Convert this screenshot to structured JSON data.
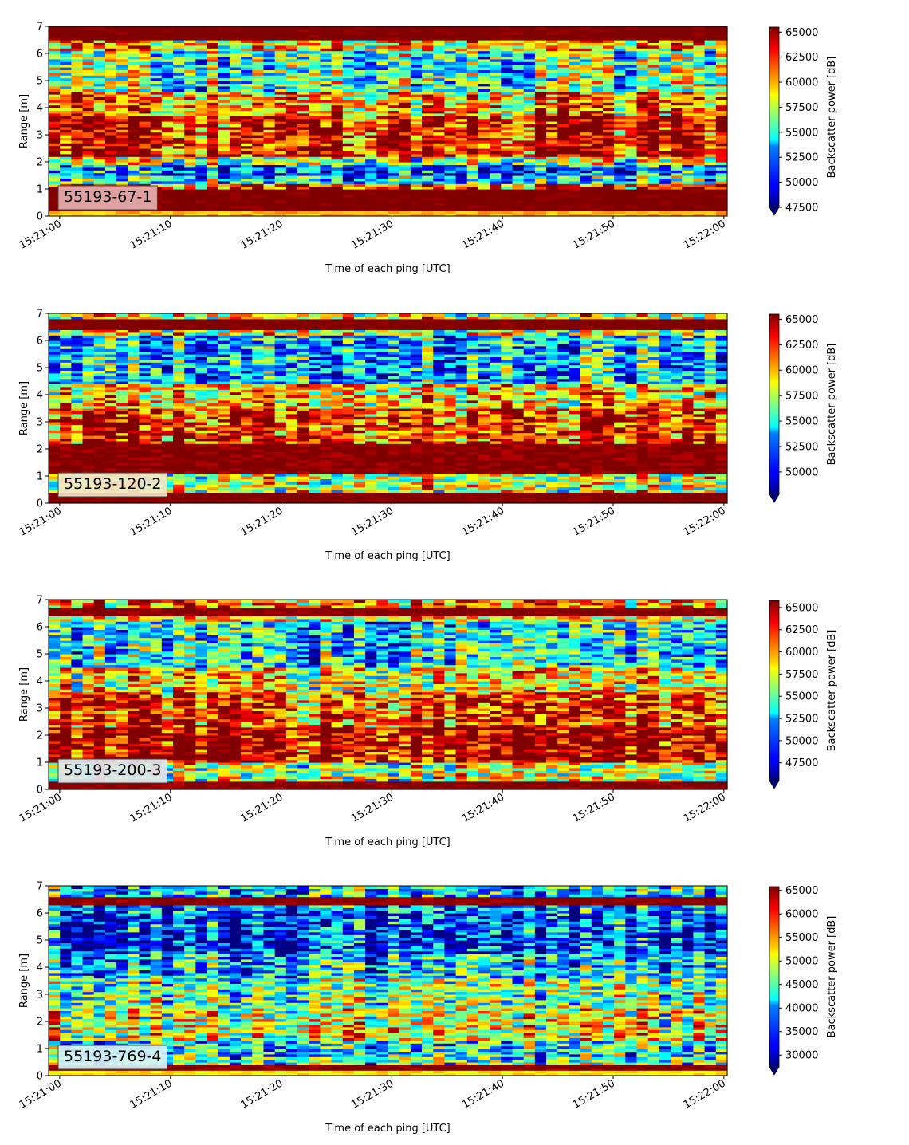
{
  "chart_data": [
    {
      "type": "heatmap",
      "label": "55193-67-1",
      "xlabel": "Time of each ping [UTC]",
      "ylabel": "Range [m]",
      "x_ticks": [
        "15:21:00",
        "15:21:10",
        "15:21:20",
        "15:21:30",
        "15:21:40",
        "15:21:50",
        "15:22:00"
      ],
      "x_range_seconds": [
        -1,
        60.3
      ],
      "ylim": [
        0,
        7
      ],
      "y_ticks": [
        0,
        1,
        2,
        3,
        4,
        5,
        6,
        7
      ],
      "colorbar_label": "Backscatter power [dB]",
      "colorbar_ticks": [
        47500,
        50000,
        52500,
        55000,
        57500,
        60000,
        62500,
        65000
      ],
      "vmin": 47500,
      "vmax": 65500,
      "colormap": "jet",
      "label_box_color": "#e7b0b0",
      "range_profile": [
        {
          "range": [
            0.0,
            0.25
          ],
          "value": 60000
        },
        {
          "range": [
            0.25,
            1.05
          ],
          "value": 66000
        },
        {
          "range": [
            1.05,
            1.2
          ],
          "value": 62500
        },
        {
          "range": [
            1.2,
            1.5
          ],
          "value": 54000
        },
        {
          "range": [
            1.5,
            1.95
          ],
          "value": 51500
        },
        {
          "range": [
            1.95,
            2.2
          ],
          "value": 57000
        },
        {
          "range": [
            2.2,
            3.7
          ],
          "value": 63500
        },
        {
          "range": [
            3.7,
            4.6
          ],
          "value": 60500
        },
        {
          "range": [
            4.6,
            6.1
          ],
          "value": 55500
        },
        {
          "range": [
            6.1,
            6.5
          ],
          "value": 59500
        },
        {
          "range": [
            6.5,
            7.0
          ],
          "value": 66000
        }
      ]
    },
    {
      "type": "heatmap",
      "label": "55193-120-2",
      "xlabel": "Time of each ping [UTC]",
      "ylabel": "Range [m]",
      "x_ticks": [
        "15:21:00",
        "15:21:10",
        "15:21:20",
        "15:21:30",
        "15:21:40",
        "15:21:50",
        "15:22:00"
      ],
      "x_range_seconds": [
        -1,
        60.3
      ],
      "ylim": [
        0,
        7
      ],
      "y_ticks": [
        0,
        1,
        2,
        3,
        4,
        5,
        6,
        7
      ],
      "colorbar_label": "Backscatter power [dB]",
      "colorbar_ticks": [
        50000,
        52500,
        55000,
        57500,
        60000,
        62500,
        65000
      ],
      "vmin": 47800,
      "vmax": 65500,
      "colormap": "jet",
      "label_box_color": "#f3e8c8",
      "range_profile": [
        {
          "range": [
            0.0,
            0.4
          ],
          "value": 66000
        },
        {
          "range": [
            0.4,
            1.1
          ],
          "value": 58000
        },
        {
          "range": [
            1.1,
            2.2
          ],
          "value": 65500
        },
        {
          "range": [
            2.2,
            3.5
          ],
          "value": 63000
        },
        {
          "range": [
            3.5,
            4.4
          ],
          "value": 59500
        },
        {
          "range": [
            4.4,
            6.2
          ],
          "value": 53500
        },
        {
          "range": [
            6.2,
            6.45
          ],
          "value": 58000
        },
        {
          "range": [
            6.45,
            6.85
          ],
          "value": 66000
        },
        {
          "range": [
            6.85,
            7.0
          ],
          "value": 58500
        }
      ]
    },
    {
      "type": "heatmap",
      "label": "55193-200-3",
      "xlabel": "Time of each ping [UTC]",
      "ylabel": "Range [m]",
      "x_ticks": [
        "15:21:00",
        "15:21:10",
        "15:21:20",
        "15:21:30",
        "15:21:40",
        "15:21:50",
        "15:22:00"
      ],
      "x_range_seconds": [
        -1,
        60.3
      ],
      "ylim": [
        0,
        7
      ],
      "y_ticks": [
        0,
        1,
        2,
        3,
        4,
        5,
        6,
        7
      ],
      "colorbar_label": "Backscatter power [dB]",
      "colorbar_ticks": [
        47500,
        50000,
        52500,
        55000,
        57500,
        60000,
        62500,
        65000
      ],
      "vmin": 45500,
      "vmax": 65800,
      "colormap": "jet",
      "label_box_color": "#dde7ee",
      "range_profile": [
        {
          "range": [
            0.0,
            0.35
          ],
          "value": 66000
        },
        {
          "range": [
            0.35,
            1.0
          ],
          "value": 57000
        },
        {
          "range": [
            1.0,
            2.3
          ],
          "value": 65000
        },
        {
          "range": [
            2.3,
            3.6
          ],
          "value": 62000
        },
        {
          "range": [
            3.6,
            4.5
          ],
          "value": 58000
        },
        {
          "range": [
            4.5,
            6.2
          ],
          "value": 53000
        },
        {
          "range": [
            6.2,
            6.4
          ],
          "value": 57500
        },
        {
          "range": [
            6.4,
            6.75
          ],
          "value": 66000
        },
        {
          "range": [
            6.75,
            7.0
          ],
          "value": 60000
        }
      ]
    },
    {
      "type": "heatmap",
      "label": "55193-769-4",
      "xlabel": "Time of each ping [UTC]",
      "ylabel": "Range [m]",
      "x_ticks": [
        "15:21:00",
        "15:21:10",
        "15:21:20",
        "15:21:30",
        "15:21:40",
        "15:21:50",
        "15:22:00"
      ],
      "x_range_seconds": [
        -1,
        60.3
      ],
      "ylim": [
        0,
        7
      ],
      "y_ticks": [
        0,
        1,
        2,
        3,
        4,
        5,
        6,
        7
      ],
      "colorbar_label": "Backscatter power [dB]",
      "colorbar_ticks": [
        30000,
        35000,
        40000,
        45000,
        50000,
        55000,
        60000,
        65000
      ],
      "vmin": 27500,
      "vmax": 65800,
      "colormap": "jet",
      "label_box_color": "#d8f2f6",
      "range_profile": [
        {
          "range": [
            0.0,
            0.25
          ],
          "value": 52000
        },
        {
          "range": [
            0.25,
            0.45
          ],
          "value": 66000
        },
        {
          "range": [
            0.45,
            0.75
          ],
          "value": 44000
        },
        {
          "range": [
            0.75,
            1.3
          ],
          "value": 41000
        },
        {
          "range": [
            1.3,
            2.5
          ],
          "value": 50500
        },
        {
          "range": [
            2.5,
            3.6
          ],
          "value": 46000
        },
        {
          "range": [
            3.6,
            4.5
          ],
          "value": 40500
        },
        {
          "range": [
            4.5,
            6.0
          ],
          "value": 34500
        },
        {
          "range": [
            6.0,
            6.3
          ],
          "value": 37000
        },
        {
          "range": [
            6.3,
            6.6
          ],
          "value": 66000
        },
        {
          "range": [
            6.6,
            7.0
          ],
          "value": 40500
        }
      ]
    }
  ]
}
